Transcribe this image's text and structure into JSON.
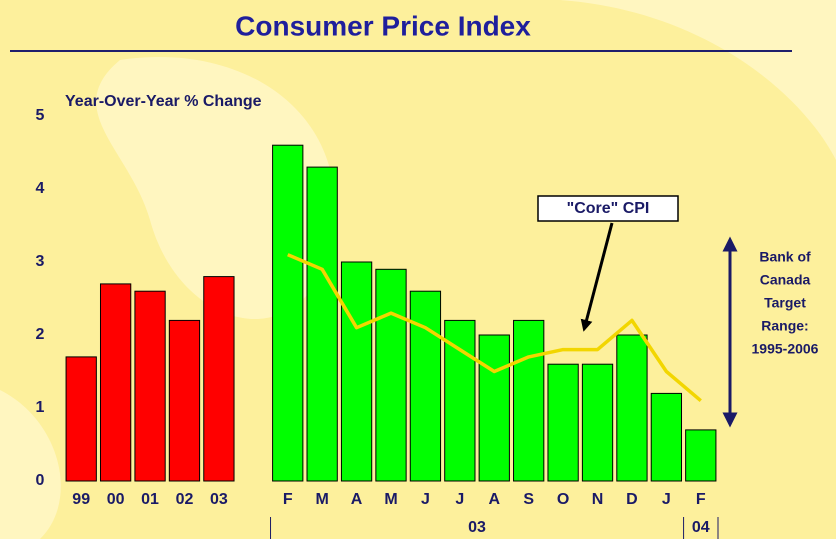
{
  "chart_data": {
    "type": "bar",
    "title": "Consumer Price Index",
    "y_label": "Year-Over-Year % Change",
    "categories": [
      "99",
      "00",
      "01",
      "02",
      "03",
      null,
      "F",
      "M",
      "A",
      "M",
      "J",
      "J",
      "A",
      "S",
      "O",
      "N",
      "D",
      "J",
      "F"
    ],
    "group_labels": [
      "03",
      "04"
    ],
    "series": [
      {
        "color": "#ff0000",
        "values": [
          1.7,
          2.7,
          2.6,
          2.2,
          2.8,
          null,
          null,
          null,
          null,
          null,
          null,
          null,
          null,
          null,
          null,
          null,
          null,
          null,
          null
        ]
      },
      {
        "color": "#00ff00",
        "values": [
          null,
          null,
          null,
          null,
          null,
          null,
          4.6,
          4.3,
          3.0,
          2.9,
          2.6,
          2.2,
          2.0,
          2.2,
          1.6,
          1.6,
          2.0,
          1.2,
          0.7
        ]
      },
      {
        "name": "\"Core\" CPI",
        "type": "line",
        "color": "#f2d600",
        "values": [
          null,
          null,
          null,
          null,
          null,
          null,
          3.1,
          2.9,
          2.1,
          2.3,
          2.1,
          1.8,
          1.5,
          1.7,
          1.8,
          1.8,
          2.2,
          1.5,
          1.1
        ]
      }
    ],
    "target_range": [
      1,
      3
    ],
    "target_label": [
      "Bank of",
      "Canada",
      "Target",
      "Range:",
      "1995-2006"
    ],
    "ylim": [
      0,
      5
    ],
    "yticks": [
      0,
      1,
      2,
      3,
      4,
      5
    ]
  }
}
